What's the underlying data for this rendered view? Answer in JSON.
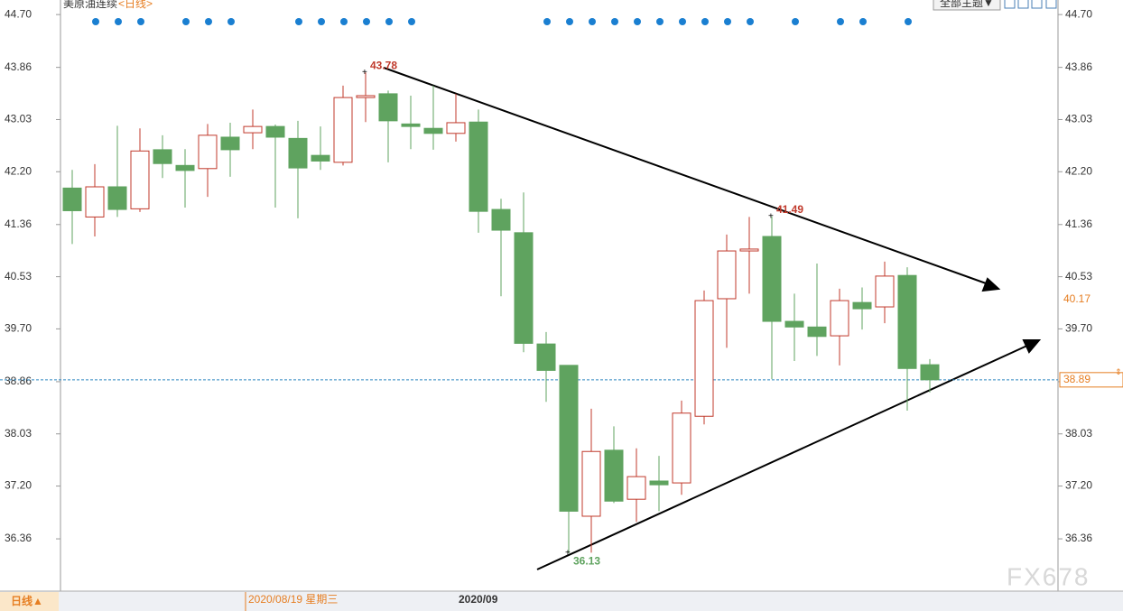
{
  "chart_data": {
    "type": "candlestick",
    "title": "美原油连续",
    "subtitle": "<日线>",
    "open": [
      41.94,
      41.48,
      41.96,
      41.61,
      42.55,
      42.3,
      42.25,
      42.75,
      42.82,
      42.92,
      42.73,
      42.46,
      42.35,
      43.38,
      43.44,
      42.96,
      42.89,
      42.81,
      42.99,
      41.6,
      41.23,
      39.46,
      39.12,
      36.72,
      37.77,
      36.99,
      37.28,
      37.25,
      38.31,
      40.18,
      40.94,
      41.17,
      39.82,
      39.73,
      39.59,
      40.12,
      40.05,
      40.55,
      39.13
    ],
    "high": [
      42.23,
      42.32,
      42.93,
      42.89,
      42.78,
      42.56,
      42.96,
      42.98,
      43.19,
      42.95,
      43.01,
      42.92,
      43.57,
      43.78,
      43.49,
      43.41,
      43.57,
      43.44,
      43.19,
      41.77,
      41.87,
      39.65,
      39.12,
      38.43,
      38.15,
      37.8,
      37.68,
      38.56,
      40.31,
      41.2,
      41.48,
      41.49,
      40.26,
      40.74,
      40.34,
      40.36,
      40.77,
      40.68,
      39.22
    ],
    "low": [
      41.05,
      41.17,
      41.48,
      41.56,
      42.1,
      41.63,
      41.8,
      42.12,
      42.56,
      41.63,
      41.46,
      42.23,
      42.3,
      42.99,
      42.35,
      42.56,
      42.55,
      42.68,
      41.23,
      40.22,
      39.33,
      38.54,
      36.13,
      36.14,
      36.93,
      36.63,
      36.8,
      37.06,
      38.18,
      39.4,
      40.26,
      38.9,
      39.19,
      39.27,
      39.12,
      39.69,
      39.79,
      38.4,
      38.69
    ],
    "close": [
      41.58,
      41.96,
      41.6,
      42.53,
      42.33,
      42.22,
      42.78,
      42.55,
      42.92,
      42.75,
      42.26,
      42.37,
      43.38,
      43.41,
      43.01,
      42.92,
      42.81,
      42.98,
      41.57,
      41.27,
      39.47,
      39.04,
      36.8,
      37.75,
      36.96,
      37.35,
      37.22,
      38.36,
      40.15,
      40.94,
      40.97,
      39.82,
      39.73,
      39.58,
      40.15,
      40.02,
      40.54,
      39.07,
      38.89
    ],
    "up_color": "#c0392b",
    "down_color": "#5fa35f",
    "ylim": [
      35.6,
      44.86
    ],
    "yticks": [
      {
        "value": 44.7,
        "label": "44.70"
      },
      43.86,
      43.03,
      {
        "value": 42.2,
        "label": "42.20"
      },
      41.36,
      40.53,
      {
        "value": 39.7,
        "label": "39.70"
      },
      38.86,
      38.03,
      {
        "value": 37.2,
        "label": "37.20"
      },
      36.36
    ],
    "price_markers": [
      40.17,
      38.89
    ],
    "x_labels": [
      "2020/08/19 星期三",
      "2020/09"
    ]
  },
  "ui": {
    "theme_button": "全部主题▼",
    "period_button": "日线▲",
    "watermark": "FX678"
  }
}
